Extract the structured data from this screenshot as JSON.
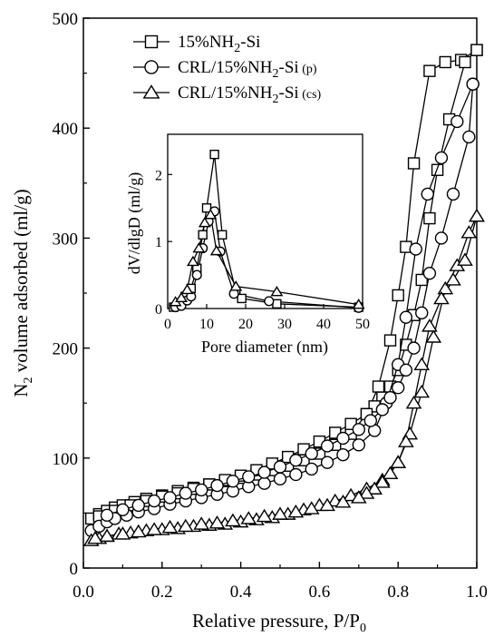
{
  "chart_data": [
    {
      "type": "line",
      "chart": "main",
      "xlabel": "Relative pressure, P/P",
      "xlabel_sub": "0",
      "ylabel": "N",
      "ylabel_sub": "2",
      "ylabel_rest": " volume adsorbed (ml/g)",
      "xlim": [
        0.0,
        1.0
      ],
      "ylim": [
        0,
        500
      ],
      "x_ticks": [
        0.0,
        0.2,
        0.4,
        0.6,
        0.8,
        1.0
      ],
      "x_tick_labels": [
        "0.0",
        "0.2",
        "0.4",
        "0.6",
        "0.8",
        "1.0"
      ],
      "y_ticks": [
        0,
        100,
        200,
        300,
        400,
        500
      ],
      "y_tick_labels": [
        "0",
        "100",
        "200",
        "300",
        "400",
        "500"
      ],
      "legend_position": "top-left",
      "series": [
        {
          "name": "15%NH2-Si",
          "legend_parts": [
            "15%NH",
            "2",
            "-Si",
            ""
          ],
          "marker": "square",
          "adsorption": [
            [
              0.02,
              45
            ],
            [
              0.04,
              49
            ],
            [
              0.06,
              52
            ],
            [
              0.08,
              55
            ],
            [
              0.1,
              57
            ],
            [
              0.13,
              60
            ],
            [
              0.16,
              63
            ],
            [
              0.2,
              66
            ],
            [
              0.24,
              70
            ],
            [
              0.28,
              73
            ],
            [
              0.32,
              76
            ],
            [
              0.36,
              79
            ],
            [
              0.4,
              82
            ],
            [
              0.44,
              85
            ],
            [
              0.48,
              89
            ],
            [
              0.52,
              93
            ],
            [
              0.56,
              98
            ],
            [
              0.6,
              104
            ],
            [
              0.64,
              112
            ],
            [
              0.68,
              122
            ],
            [
              0.72,
              140
            ],
            [
              0.75,
              165
            ],
            [
              0.78,
              207
            ],
            [
              0.8,
              248
            ],
            [
              0.82,
              292
            ],
            [
              0.84,
              368
            ],
            [
              0.88,
              452
            ],
            [
              0.92,
              460
            ],
            [
              0.96,
              462
            ],
            [
              1.0,
              471
            ]
          ],
          "desorption": [
            [
              1.0,
              471
            ],
            [
              0.97,
              460
            ],
            [
              0.93,
              408
            ],
            [
              0.9,
              362
            ],
            [
              0.88,
              318
            ],
            [
              0.86,
              262
            ],
            [
              0.84,
              230
            ],
            [
              0.82,
              203
            ],
            [
              0.8,
              180
            ],
            [
              0.78,
              165
            ],
            [
              0.76,
              155
            ],
            [
              0.74,
              147
            ],
            [
              0.72,
              140
            ],
            [
              0.68,
              131
            ],
            [
              0.64,
              123
            ],
            [
              0.6,
              115
            ],
            [
              0.56,
              108
            ],
            [
              0.52,
              101
            ],
            [
              0.48,
              95
            ],
            [
              0.44,
              89
            ],
            [
              0.4,
              84
            ],
            [
              0.36,
              80
            ],
            [
              0.32,
              76
            ],
            [
              0.28,
              72
            ],
            [
              0.24,
              68
            ],
            [
              0.2,
              65
            ],
            [
              0.16,
              61
            ],
            [
              0.12,
              57
            ],
            [
              0.08,
              52
            ],
            [
              0.04,
              47
            ]
          ]
        },
        {
          "name": "CRL/15%NH2-Si (p)",
          "legend_parts": [
            "CRL/15%NH",
            "2",
            "-Si",
            " (p)"
          ],
          "marker": "circle",
          "adsorption": [
            [
              0.02,
              34
            ],
            [
              0.04,
              38
            ],
            [
              0.06,
              42
            ],
            [
              0.08,
              45
            ],
            [
              0.11,
              48
            ],
            [
              0.14,
              51
            ],
            [
              0.18,
              54
            ],
            [
              0.22,
              58
            ],
            [
              0.26,
              61
            ],
            [
              0.3,
              64
            ],
            [
              0.34,
              67
            ],
            [
              0.38,
              70
            ],
            [
              0.42,
              74
            ],
            [
              0.46,
              77
            ],
            [
              0.5,
              81
            ],
            [
              0.54,
              85
            ],
            [
              0.58,
              90
            ],
            [
              0.62,
              96
            ],
            [
              0.66,
              103
            ],
            [
              0.7,
              112
            ],
            [
              0.74,
              125
            ],
            [
              0.77,
              150
            ],
            [
              0.8,
              185
            ],
            [
              0.82,
              228
            ],
            [
              0.845,
              290
            ],
            [
              0.875,
              340
            ],
            [
              0.91,
              373
            ],
            [
              0.95,
              406
            ],
            [
              0.99,
              440
            ]
          ],
          "desorption": [
            [
              0.99,
              440
            ],
            [
              0.98,
              392
            ],
            [
              0.94,
              340
            ],
            [
              0.91,
              300
            ],
            [
              0.88,
              268
            ],
            [
              0.86,
              232
            ],
            [
              0.84,
              200
            ],
            [
              0.82,
              180
            ],
            [
              0.8,
              164
            ],
            [
              0.78,
              155
            ],
            [
              0.76,
              144
            ],
            [
              0.73,
              134
            ],
            [
              0.7,
              126
            ],
            [
              0.66,
              118
            ],
            [
              0.62,
              111
            ],
            [
              0.58,
              104
            ],
            [
              0.54,
              98
            ],
            [
              0.5,
              92
            ],
            [
              0.46,
              87
            ],
            [
              0.42,
              83
            ],
            [
              0.38,
              79
            ],
            [
              0.34,
              75
            ],
            [
              0.3,
              71
            ],
            [
              0.26,
              68
            ],
            [
              0.22,
              64
            ],
            [
              0.18,
              61
            ],
            [
              0.14,
              57
            ],
            [
              0.1,
              53
            ],
            [
              0.06,
              48
            ]
          ]
        },
        {
          "name": "CRL/15%NH2-Si (cs)",
          "legend_parts": [
            "CRL/15%NH",
            "2",
            "-Si",
            " (cs)"
          ],
          "marker": "triangle",
          "adsorption": [
            [
              0.02,
              25
            ],
            [
              0.04,
              27
            ],
            [
              0.06,
              29
            ],
            [
              0.09,
              31
            ],
            [
              0.12,
              32
            ],
            [
              0.16,
              34
            ],
            [
              0.2,
              35
            ],
            [
              0.24,
              36
            ],
            [
              0.28,
              38
            ],
            [
              0.32,
              39
            ],
            [
              0.36,
              40
            ],
            [
              0.4,
              42
            ],
            [
              0.44,
              44
            ],
            [
              0.48,
              46
            ],
            [
              0.52,
              49
            ],
            [
              0.56,
              53
            ],
            [
              0.6,
              57
            ],
            [
              0.64,
              61
            ],
            [
              0.68,
              66
            ],
            [
              0.72,
              72
            ],
            [
              0.76,
              80
            ],
            [
              0.8,
              96
            ],
            [
              0.83,
              122
            ],
            [
              0.86,
              160
            ],
            [
              0.89,
              210
            ],
            [
              0.92,
              254
            ],
            [
              0.95,
              275
            ],
            [
              0.98,
              305
            ],
            [
              1.0,
              320
            ]
          ],
          "desorption": [
            [
              1.0,
              320
            ],
            [
              0.97,
              280
            ],
            [
              0.94,
              262
            ],
            [
              0.91,
              245
            ],
            [
              0.88,
              220
            ],
            [
              0.86,
              185
            ],
            [
              0.84,
              150
            ],
            [
              0.82,
              115
            ],
            [
              0.8,
              96
            ],
            [
              0.78,
              86
            ],
            [
              0.76,
              78
            ],
            [
              0.74,
              72
            ],
            [
              0.72,
              68
            ],
            [
              0.7,
              64
            ],
            [
              0.66,
              60
            ],
            [
              0.62,
              57
            ],
            [
              0.58,
              54
            ],
            [
              0.54,
              51
            ],
            [
              0.5,
              49
            ],
            [
              0.46,
              47
            ],
            [
              0.42,
              45
            ],
            [
              0.38,
              43
            ],
            [
              0.34,
              41
            ],
            [
              0.3,
              40
            ],
            [
              0.26,
              38
            ],
            [
              0.22,
              37
            ],
            [
              0.18,
              35
            ],
            [
              0.14,
              33
            ],
            [
              0.1,
              31
            ],
            [
              0.06,
              29
            ],
            [
              0.03,
              27
            ]
          ]
        }
      ]
    },
    {
      "type": "line",
      "chart": "inset",
      "xlabel": "Pore diameter (nm)",
      "ylabel": "dV/dlgD (ml/g)",
      "xlim": [
        0,
        50
      ],
      "ylim": [
        0,
        2.6
      ],
      "x_ticks": [
        0,
        10,
        20,
        30,
        40,
        50
      ],
      "x_tick_labels": [
        "0",
        "10",
        "20",
        "30",
        "40",
        "50"
      ],
      "y_ticks": [
        0,
        1,
        2
      ],
      "y_tick_labels": [
        "0",
        "1",
        "2"
      ],
      "series": [
        {
          "name": "15%NH2-Si",
          "marker": "square",
          "points": [
            [
              1.5,
              0.02
            ],
            [
              3,
              0.08
            ],
            [
              4.5,
              0.18
            ],
            [
              6,
              0.3
            ],
            [
              7.5,
              0.6
            ],
            [
              9,
              1.1
            ],
            [
              10,
              1.5
            ],
            [
              12,
              2.3
            ],
            [
              14,
              1.1
            ],
            [
              17.5,
              0.25
            ],
            [
              19,
              0.15
            ],
            [
              28,
              0.07
            ],
            [
              49,
              0.02
            ]
          ]
        },
        {
          "name": "CRL/15%NH2-Si (p)",
          "marker": "circle",
          "points": [
            [
              2,
              0.02
            ],
            [
              3.5,
              0.04
            ],
            [
              5,
              0.12
            ],
            [
              6,
              0.18
            ],
            [
              7.5,
              0.5
            ],
            [
              9,
              0.9
            ],
            [
              10.5,
              1.3
            ],
            [
              12,
              1.45
            ],
            [
              13.5,
              0.85
            ],
            [
              17,
              0.22
            ],
            [
              26,
              0.11
            ],
            [
              49,
              0.01
            ]
          ]
        },
        {
          "name": "CRL/15%NH2-Si (cs)",
          "marker": "triangle",
          "points": [
            [
              2,
              0.1
            ],
            [
              3.5,
              0.16
            ],
            [
              5,
              0.28
            ],
            [
              6.5,
              0.7
            ],
            [
              8,
              0.9
            ],
            [
              9.5,
              1.28
            ],
            [
              11,
              1.4
            ],
            [
              12.5,
              0.86
            ],
            [
              17.5,
              0.33
            ],
            [
              28,
              0.25
            ],
            [
              49,
              0.06
            ]
          ]
        }
      ]
    }
  ]
}
